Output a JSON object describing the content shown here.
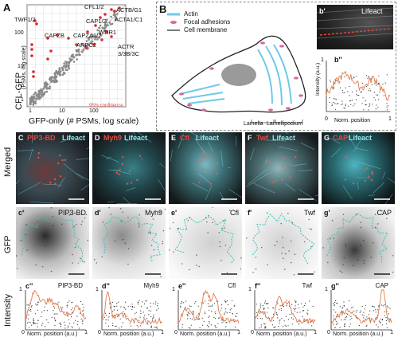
{
  "panelA": {
    "letter": "A",
    "xlabel": "GFP-only (# PSMs, log scale)",
    "ylabel": "CFL-GFP",
    "ylabel_sub": "(PSMs, log scale)",
    "confidence": "95% confidence",
    "xticks": [
      "1",
      "10",
      "100"
    ],
    "yticks": [
      "1",
      "10",
      "100"
    ],
    "labels": [
      "CFL1/2",
      "ACTB/G1",
      "CAP1/2",
      "ACTA1/C1",
      "TWF1/2",
      "WDR1",
      "CAPZB",
      "CAPZA1/2",
      "ARPC2",
      "ACTR",
      "3/3B/3C"
    ]
  },
  "panelB": {
    "letter": "B",
    "legend": {
      "actin": "Actin",
      "adhesions": "Focal adhesions",
      "membrane": "Cell membrane"
    },
    "lamella": "Lamella",
    "lamellipodium": "Lamellipodium",
    "inset_label": "b'",
    "inset_title": "Lifeact",
    "plot_label": "b''",
    "plot_ylabel": "Intensity (a.u.)",
    "plot_xlabel": "Norm. position",
    "plot_ticks": {
      "x0": "0",
      "x1": "1",
      "y0": "0",
      "y1": "1"
    }
  },
  "rows": {
    "merged": "Merged",
    "gfp": "GFP",
    "intensity": "Intensity"
  },
  "columns": [
    {
      "letter": "C",
      "name": "PIP3-BD",
      "color": "#e8453c",
      "gfp_label": "c'",
      "plot_label": "c''"
    },
    {
      "letter": "D",
      "name": "Myh9",
      "color": "#e8453c",
      "gfp_label": "d'",
      "plot_label": "d''"
    },
    {
      "letter": "E",
      "name": "Cfl",
      "color": "#e8453c",
      "gfp_label": "e'",
      "plot_label": "e''"
    },
    {
      "letter": "F",
      "name": "Twf",
      "color": "#e8453c",
      "gfp_label": "f'",
      "plot_label": "f''"
    },
    {
      "letter": "G",
      "name": "CAP",
      "color": "#e8453c",
      "gfp_label": "g'",
      "plot_label": "g''"
    }
  ],
  "lifeact": "Lifeact",
  "plot_xlabel": "Norm. position (a.u.)",
  "plot_ticks": {
    "x0": "0",
    "x1": "1",
    "y0": "0",
    "y1": "1"
  },
  "colors": {
    "cyan": "#5fd3e0",
    "red": "#e8453c",
    "trace": "#e07a4a",
    "dots": "#333333"
  }
}
